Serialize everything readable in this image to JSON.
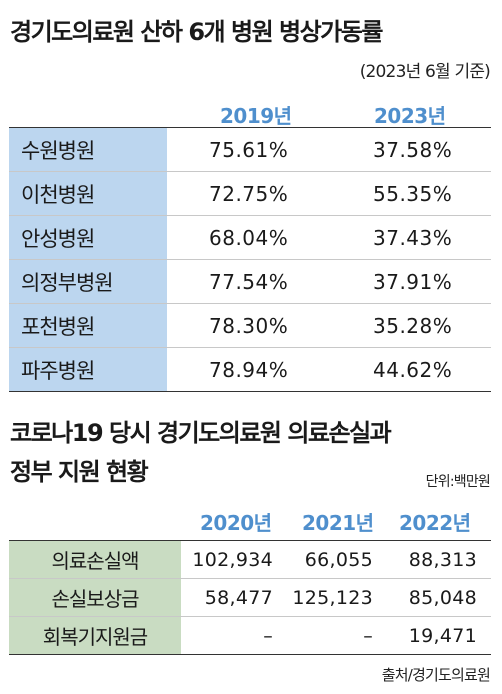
{
  "table1": {
    "title": "경기도의료원 산하 6개 병원 병상가동률",
    "as_of": "(2023년 6월 기준)",
    "years": [
      "2019년",
      "2023년"
    ],
    "rows": [
      {
        "name": "수원병원",
        "v2019": "75.61%",
        "v2023": "37.58%"
      },
      {
        "name": "이천병원",
        "v2019": "72.75%",
        "v2023": "55.35%"
      },
      {
        "name": "안성병원",
        "v2019": "68.04%",
        "v2023": "37.43%"
      },
      {
        "name": "의정부병원",
        "v2019": "77.54%",
        "v2023": "37.91%"
      },
      {
        "name": "포천병원",
        "v2019": "78.30%",
        "v2023": "35.28%"
      },
      {
        "name": "파주병원",
        "v2019": "78.94%",
        "v2023": "44.62%"
      }
    ],
    "accent_color": "#4f8fcd",
    "label_bg": "#bcd6ef"
  },
  "table2": {
    "title_line1": "코로나19 당시 경기도의료원 의료손실과",
    "title_line2": "정부 지원 현황",
    "unit": "단위:백만원",
    "years": [
      "2020년",
      "2021년",
      "2022년"
    ],
    "rows": [
      {
        "name": "의료손실액",
        "v2020": "102,934",
        "v2021": "66,055",
        "v2022": "88,313"
      },
      {
        "name": "손실보상금",
        "v2020": "58,477",
        "v2021": "125,123",
        "v2022": "85,048"
      },
      {
        "name": "회복기지원금",
        "v2020": "–",
        "v2021": "–",
        "v2022": "19,471"
      }
    ],
    "label_bg": "#c9dcc2"
  },
  "source": "출처/경기도의료원"
}
